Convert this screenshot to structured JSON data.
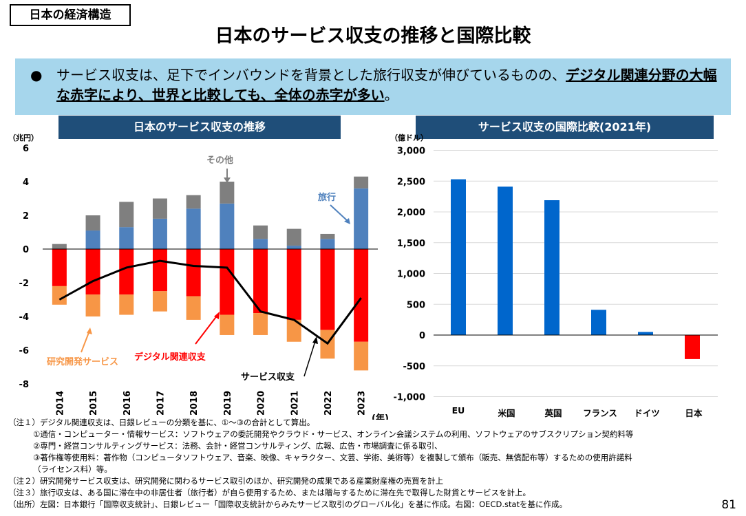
{
  "header": {
    "tag": "日本の経済構造",
    "title": "日本のサービス収支の推移と国際比較"
  },
  "banner": {
    "bullet": "●",
    "text_plain": "サービス収支は、足下でインバウンドを背景とした旅行収支が伸びているものの、",
    "text_emphasis": "デジタル関連分野の大幅な赤字により、世界と比較しても、全体の赤字が多い",
    "text_end": "。"
  },
  "chart_data": [
    {
      "type": "bar",
      "title": "日本のサービス収支の推移",
      "unit": "（兆円）",
      "xunit": "(年)",
      "ylim": [
        -8,
        6
      ],
      "yticks": [
        6,
        4,
        2,
        0,
        -2,
        -4,
        -6,
        -8
      ],
      "categories": [
        "2014",
        "2015",
        "2016",
        "2017",
        "2018",
        "2019",
        "2020",
        "2021",
        "2022",
        "2023"
      ],
      "series": [
        {
          "name": "研究開発サービス",
          "color": "#f79646",
          "values": [
            -1.1,
            -1.3,
            -1.2,
            -1.2,
            -1.4,
            -1.2,
            -1.3,
            -1.3,
            -1.7,
            -1.7
          ]
        },
        {
          "name": "デジタル関連収支",
          "color": "#ff0000",
          "values": [
            -2.2,
            -2.7,
            -2.7,
            -2.5,
            -2.8,
            -3.9,
            -3.8,
            -4.2,
            -4.8,
            -5.5
          ]
        },
        {
          "name": "旅行",
          "color": "#4f81bd",
          "values": [
            0.0,
            1.1,
            1.3,
            1.8,
            2.4,
            2.7,
            0.6,
            0.2,
            0.6,
            3.6
          ]
        },
        {
          "name": "その他",
          "color": "#7f7f7f",
          "values": [
            0.3,
            0.9,
            1.5,
            1.2,
            0.8,
            1.3,
            0.8,
            1.0,
            0.3,
            0.7
          ]
        }
      ],
      "line": {
        "name": "サービス収支",
        "color": "#000000",
        "values": [
          -3.0,
          -1.9,
          -1.1,
          -0.7,
          -1.0,
          -1.1,
          -3.7,
          -4.2,
          -5.6,
          -2.9
        ]
      },
      "annotations": {
        "other": "その他",
        "travel": "旅行",
        "rd": "研究開発サービス",
        "digital": "デジタル関連収支",
        "services": "サービス収支"
      }
    },
    {
      "type": "bar",
      "title": "サービス収支の国際比較(2021年)",
      "unit": "（億ドル）",
      "ylim": [
        -1000,
        3000
      ],
      "yticks": [
        3000,
        2500,
        2000,
        1500,
        1000,
        500,
        0,
        -500,
        -1000
      ],
      "ytick_labels": [
        "3,000",
        "2,500",
        "2,000",
        "1,500",
        "1,000",
        "500",
        "0",
        "-500",
        "-1,000"
      ],
      "categories": [
        "EU",
        "米国",
        "英国",
        "フランス",
        "ドイツ",
        "日本"
      ],
      "values": [
        2530,
        2410,
        2190,
        410,
        50,
        -390
      ],
      "colors": {
        "positive": "#0066cc",
        "negative": "#ff0000"
      },
      "grid": true
    }
  ],
  "notes": [
    "（注１）デジタル関連収支は、日銀レビューの分類を基に、①～③の合計として算出。",
    "①通信・コンピューター・情報サービス：ソフトウェアの委託開発やクラウド・サービス、オンライン会議システムの利用、ソフトウェアのサブスクリプション契約料等",
    "②専門・経営コンサルティングサービス：法務、会計・経営コンサルティング、広報、広告・市場調査に係る取引、",
    "③著作権等使用料：著作物（コンピュータソフトウェア、音楽、映像、キャラクター、文芸、学術、美術等）を複製して頒布（販売、無償配布等）するための使用許諾料",
    "（ライセンス料）等。",
    "（注２）研究開発サービス収支は、研究開発に関わるサービス取引のほか、研究開発の成果である産業財産権の売買を計上",
    "（注３）旅行収支は、ある国に滞在中の非居住者（旅行者）が自ら使用するため、または贈与するために滞在先で取得した財貨とサービスを計上。",
    "（出所）左図：日本銀行「国際収支統計」、日銀レビュー「国際収支統計からみたサービス取引のグローバル化」を基に作成。右図：OECD.statを基に作成。"
  ],
  "page_number": "81"
}
